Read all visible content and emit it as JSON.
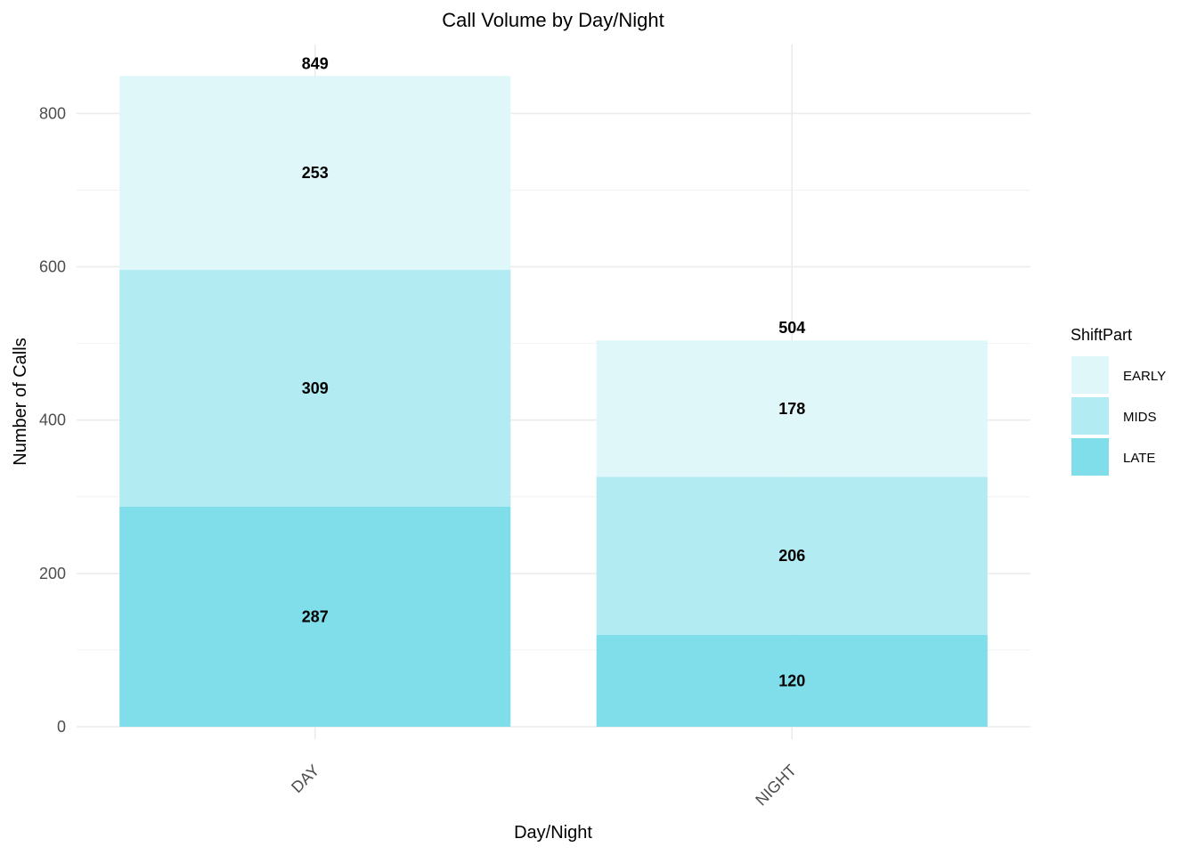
{
  "chart_data": {
    "type": "bar",
    "stacked": true,
    "title": "Call Volume by Day/Night",
    "xlabel": "Day/Night",
    "ylabel": "Number of Calls",
    "categories": [
      "DAY",
      "NIGHT"
    ],
    "series": [
      {
        "name": "LATE",
        "values": [
          287,
          120
        ],
        "color": "#80deea"
      },
      {
        "name": "MIDS",
        "values": [
          309,
          206
        ],
        "color": "#b2ebf2"
      },
      {
        "name": "EARLY",
        "values": [
          253,
          178
        ],
        "color": "#e0f7fa"
      }
    ],
    "totals": [
      849,
      504
    ],
    "ylim": [
      0,
      890
    ],
    "yticks": [
      0,
      200,
      400,
      600,
      800
    ],
    "grid": true,
    "legend": {
      "title": "ShiftPart",
      "position": "right",
      "order": [
        "EARLY",
        "MIDS",
        "LATE"
      ]
    }
  }
}
